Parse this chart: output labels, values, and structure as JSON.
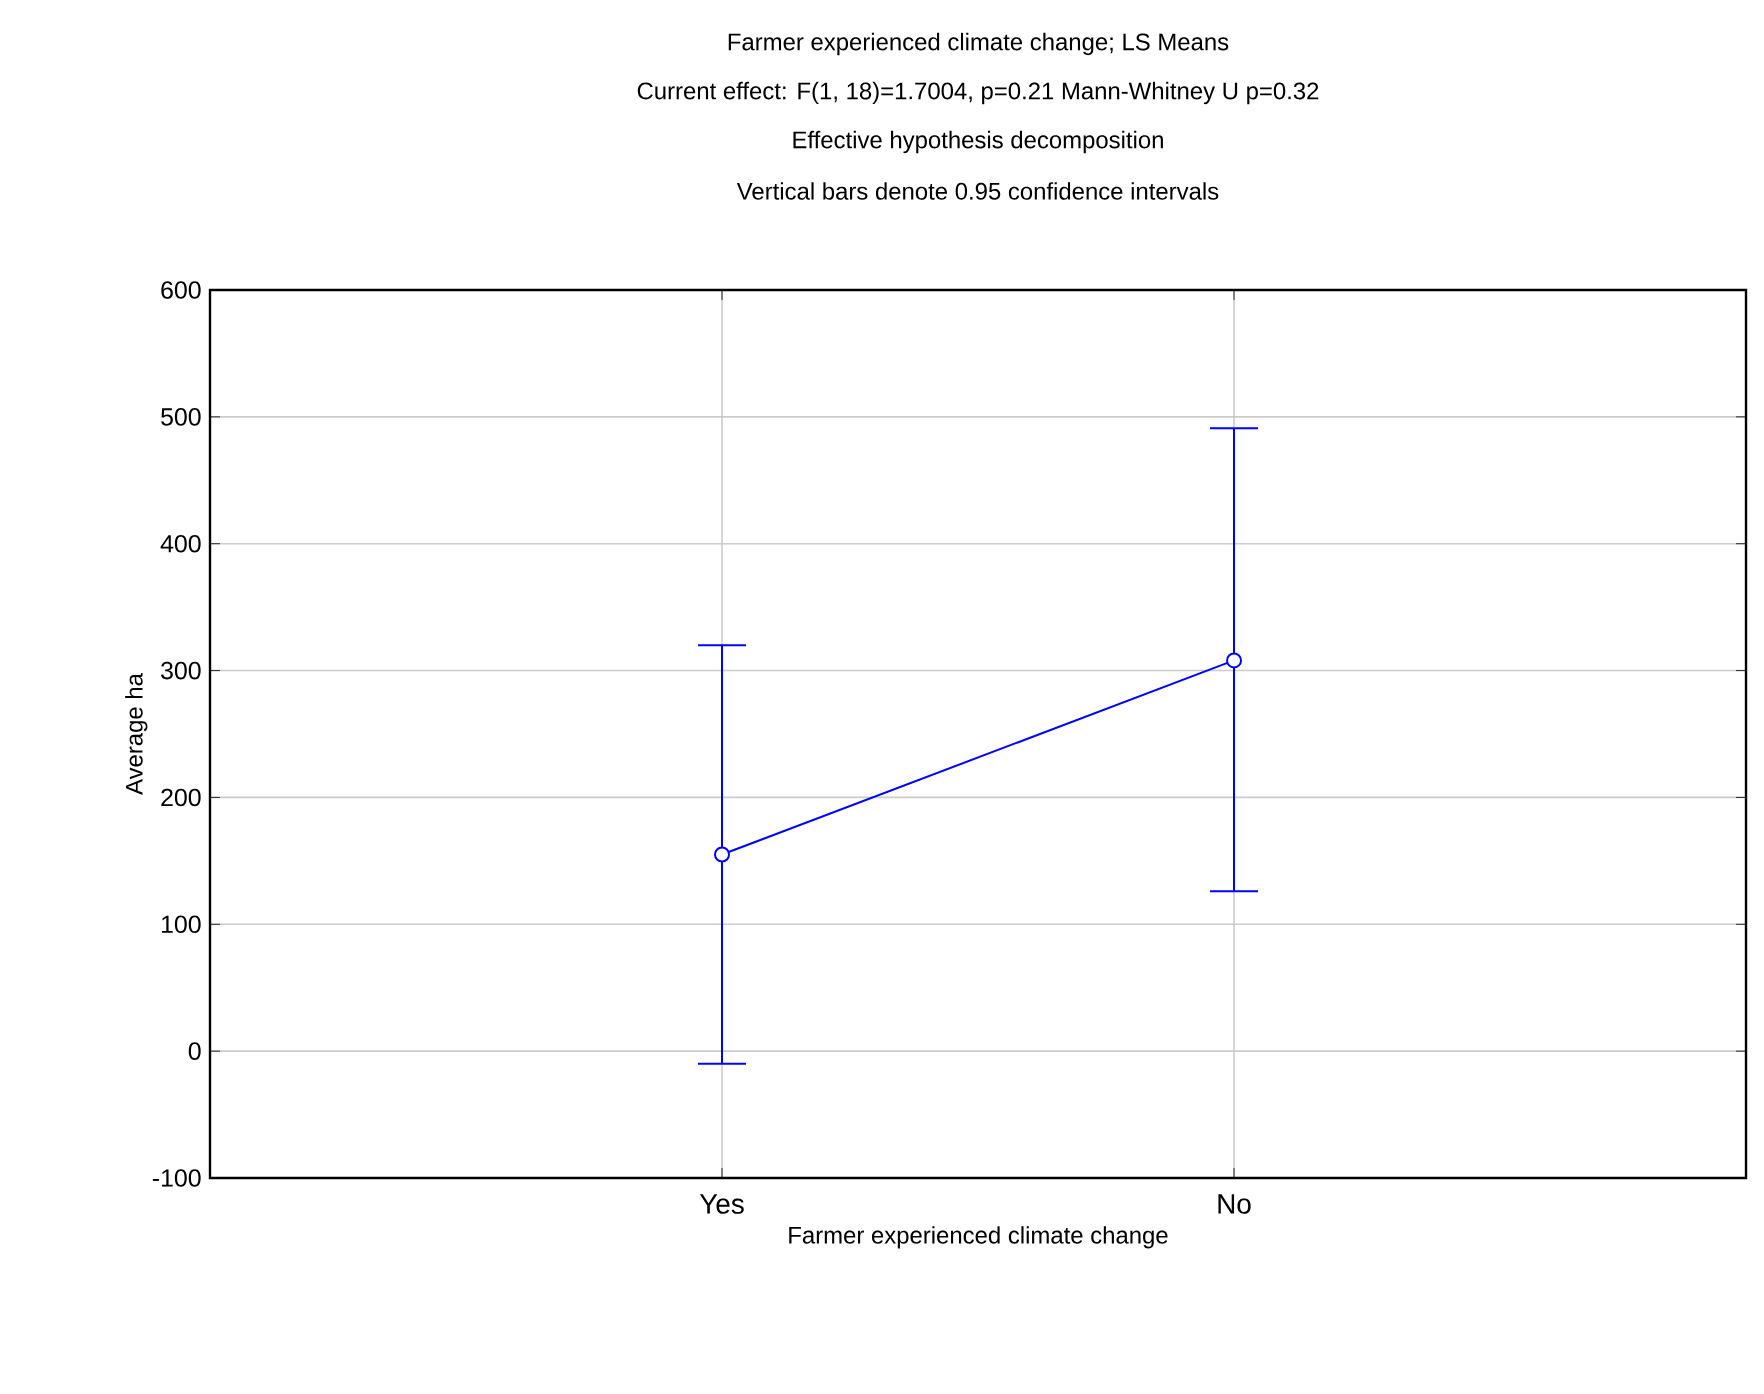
{
  "chart_data": {
    "type": "line",
    "title": "Farmer experienced climate change; LS Means",
    "subtitle": "Current effect: F(1, 18)=1.7004, p=0.21 Mann-Whitney U p=0.32",
    "annotations": [
      "Effective hypothesis decomposition",
      "Vertical bars denote 0.95 confidence intervals"
    ],
    "xlabel": "Farmer experienced climate change",
    "ylabel": "Average ha",
    "categories": [
      "Yes",
      "No"
    ],
    "series": [
      {
        "color": "#0000ff",
        "values": [
          155,
          308
        ],
        "errors": [
          [
            -10,
            320
          ],
          [
            126,
            491
          ]
        ]
      }
    ],
    "ylim": [
      -100,
      600
    ],
    "yticks": [
      -100,
      0,
      100,
      200,
      300,
      400,
      500,
      600
    ],
    "grid": true,
    "marker": "circle",
    "line_style": "solid"
  }
}
